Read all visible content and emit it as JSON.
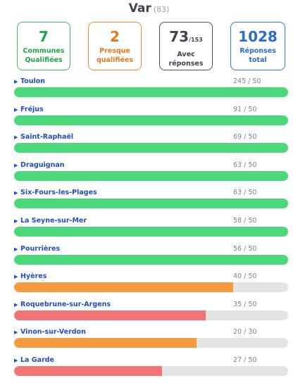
{
  "header": {
    "title": "Var",
    "code": "(83)"
  },
  "cards": {
    "qualified": {
      "value": "7",
      "label1": "Communes",
      "label2": "Qualifiées"
    },
    "almost": {
      "value": "2",
      "label1": "Presque",
      "label2": "qualifiées"
    },
    "with_answers": {
      "value": "73",
      "sub": "/153",
      "label1": "Avec",
      "label2": "réponses"
    },
    "total": {
      "value": "1028",
      "label1": "Réponses",
      "label2": "total"
    }
  },
  "colors": {
    "green": "#4ad87a",
    "orange": "#f79a3e",
    "red": "#f37474",
    "track": "#e3e4e6"
  },
  "communes": [
    {
      "name": "Toulon",
      "score": "245 / 50",
      "count": 245,
      "target": 50,
      "color": "green"
    },
    {
      "name": "Fréjus",
      "score": "91 / 50",
      "count": 91,
      "target": 50,
      "color": "green"
    },
    {
      "name": "Saint-Raphaël",
      "score": "69 / 50",
      "count": 69,
      "target": 50,
      "color": "green"
    },
    {
      "name": "Draguignan",
      "score": "63 / 50",
      "count": 63,
      "target": 50,
      "color": "green"
    },
    {
      "name": "Six-Fours-les-Plages",
      "score": "63 / 50",
      "count": 63,
      "target": 50,
      "color": "green"
    },
    {
      "name": "La Seyne-sur-Mer",
      "score": "58 / 50",
      "count": 58,
      "target": 50,
      "color": "green"
    },
    {
      "name": "Pourrières",
      "score": "56 / 50",
      "count": 56,
      "target": 50,
      "color": "green"
    },
    {
      "name": "Hyères",
      "score": "40 / 50",
      "count": 40,
      "target": 50,
      "color": "orange"
    },
    {
      "name": "Roquebrune-sur-Argens",
      "score": "35 / 50",
      "count": 35,
      "target": 50,
      "color": "red"
    },
    {
      "name": "Vinon-sur-Verdon",
      "score": "20 / 30",
      "count": 20,
      "target": 30,
      "color": "orange"
    },
    {
      "name": "La Garde",
      "score": "27 / 50",
      "count": 27,
      "target": 50,
      "color": "red"
    }
  ]
}
